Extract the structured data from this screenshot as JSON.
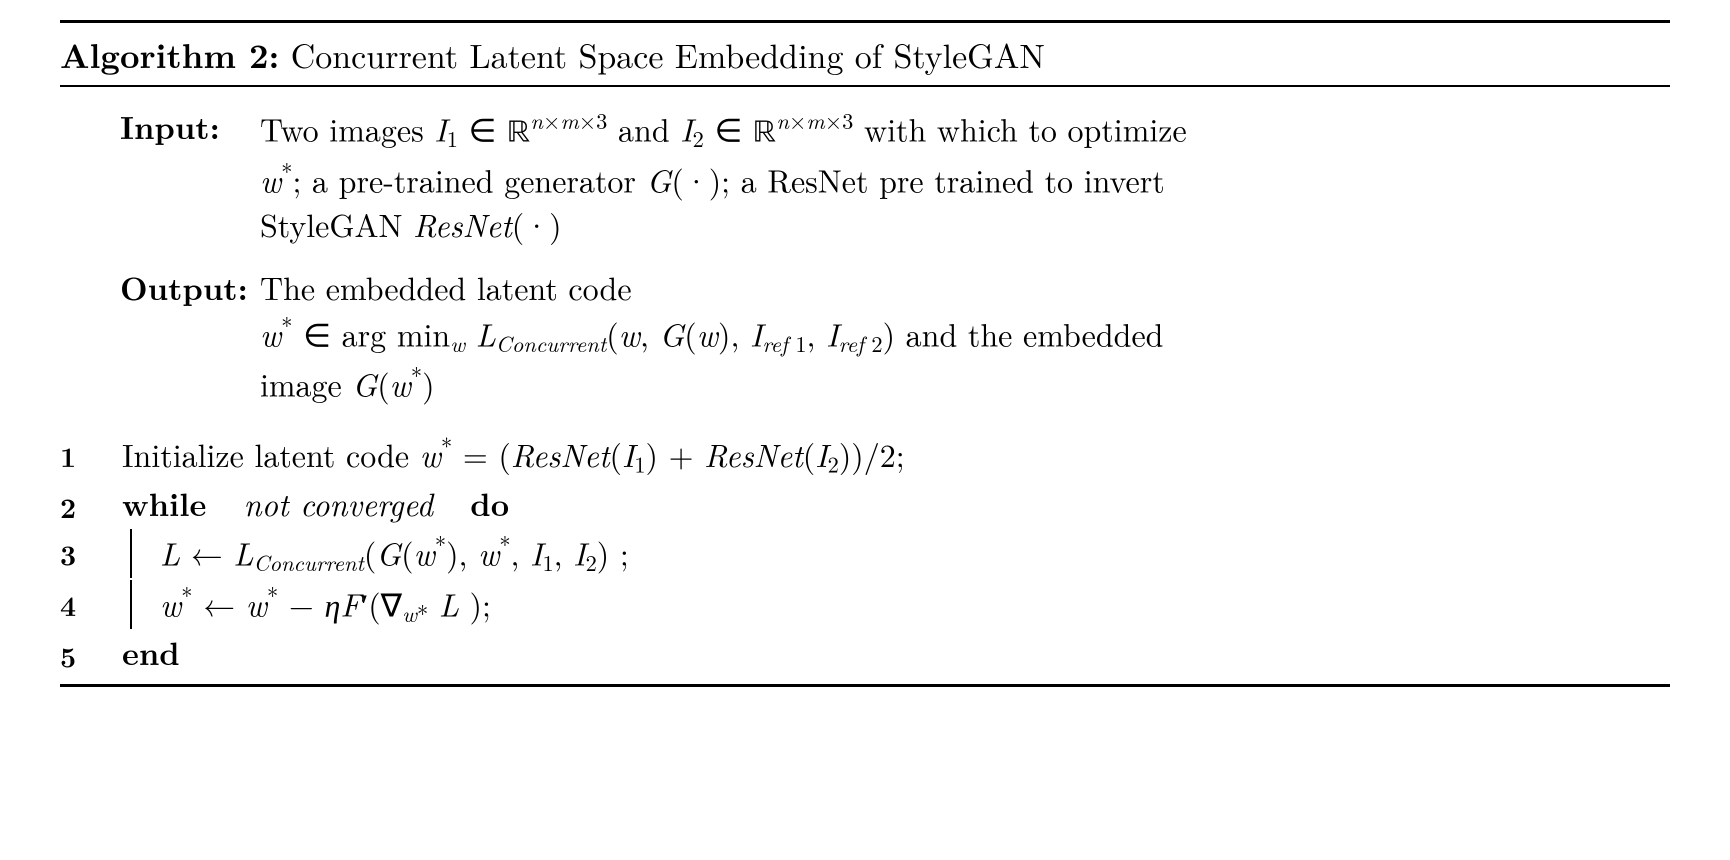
{
  "font_color": "#000000",
  "background_color": "#ffffff",
  "rule_color": "#000000",
  "title_prefix": "Algorithm 2:",
  "title_text": "Concurrent Latent Space Embedding of StyleGAN",
  "input_label": "Input:",
  "input_line1": "Two images <span class='sym'>I</span><span class='sub'>1</span> ∈ <span class='bb'>ℝ</span><span class='sup'><span class='sym'>n</span>×<span class='sym'>m</span>×3</span> and <span class='sym'>I</span><span class='sub'>2</span> ∈ <span class='bb'>ℝ</span><span class='sup'><span class='sym'>n</span>×<span class='sym'>m</span>×3</span> with which to optimize",
  "input_line2": "<span class='sym'>w</span><span class='sup'>*</span>; a pre-trained generator <span class='sym'>G</span>(·); a ResNet pre trained to invert",
  "input_line3": "StyleGAN <span class='sym'>ResNet</span>(·)",
  "output_label": "Output:",
  "output_line1": "The embedded latent code",
  "output_line2": "<span class='sym'>w</span><span class='sup'>*</span> ∈ arg min<span class='sub'><span class='sym'>w</span></span> <span class='sym'>L</span><span class='sub'><span class='sym'>Concurrent</span></span>(<span class='sym'>w</span>, <span class='sym'>G</span>(<span class='sym'>w</span>), <span class='sym'>I</span><span class='sub'><span class='sym'>ref</span> 1</span>, <span class='sym'>I</span><span class='sub'><span class='sym'>ref</span> 2</span>) and the embedded",
  "output_line3": "image <span class='sym'>G</span>(<span class='sym'>w</span><span class='sup'>*</span>)",
  "line1": "Initialize latent code <span class='sym'>w</span><span class='sup'>*</span> = (<span class='sym'>ResNet</span>(<span class='sym'>I</span><span class='sub'>1</span>) + <span class='sym'>ResNet</span>(<span class='sym'>I</span><span class='sub'>2</span>))/2;",
  "line2_while": "while",
  "line2_cond": "not converged",
  "line2_do": "do",
  "line3": "<span class='sym'>L</span> ← <span class='sym'>L</span><span class='sub'><span class='sym'>Concurrent</span></span>(<span class='sym'>G</span>(<span class='sym'>w</span><span class='sup'>*</span>), <span class='sym'>w</span><span class='sup'>*</span>, <span class='sym'>I</span><span class='sub'>1</span>, <span class='sym'>I</span><span class='sub'>2</span>) ;",
  "line4": "<span class='sym'>w</span><span class='sup'>*</span> ← <span class='sym'>w</span><span class='sup'>*</span> − <span class='sym'>η</span><span class='sym'>F</span>′(∇<span class='sub'><span class='sym'>w</span>*</span> <span class='sym'>L</span> );",
  "line5": "end"
}
